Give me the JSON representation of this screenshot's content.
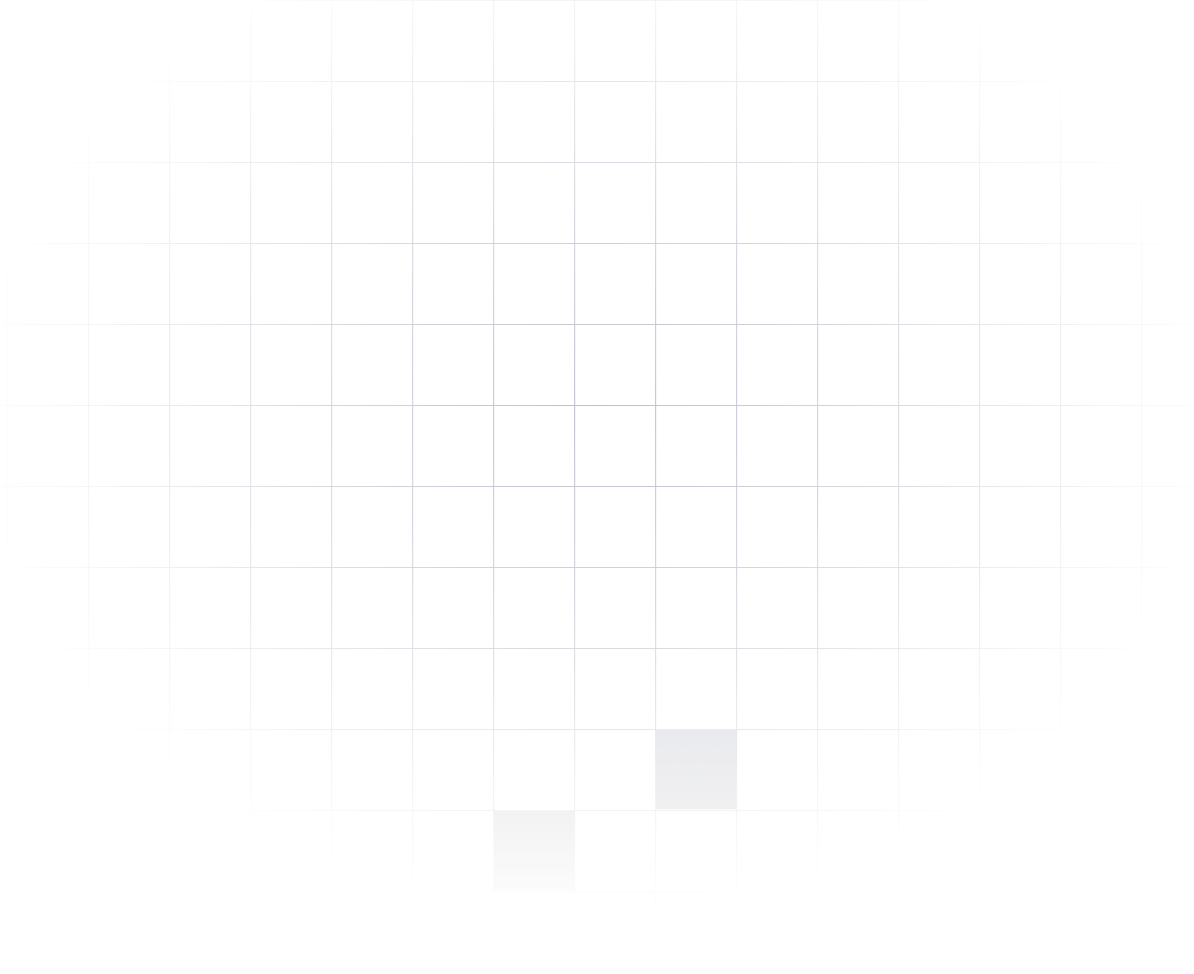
{
  "background": {
    "pattern": "grid",
    "line_color": "#a9adbb",
    "highlighted_cells": [
      {
        "column": 8,
        "row": 9,
        "color": "#e9eaed"
      },
      {
        "column": 6,
        "row": 10,
        "color": "#f2f2f3"
      }
    ]
  }
}
